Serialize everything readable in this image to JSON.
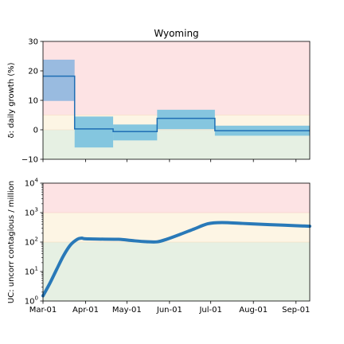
{
  "chart_data": [
    {
      "type": "step",
      "title": "Wyoming",
      "ylabel": "δ: daily growth (%)",
      "ylim": [
        -10,
        30
      ],
      "yticks": [
        -10,
        0,
        10,
        20,
        30
      ],
      "ytick_labels": [
        "−10",
        "0",
        "10",
        "20",
        "30"
      ],
      "xlim": [
        0,
        194
      ],
      "bands": [
        {
          "y0": -10,
          "y1": 0,
          "color": "#e6f0e3"
        },
        {
          "y0": 0,
          "y1": 5,
          "color": "#fdf5e4"
        },
        {
          "y0": 5,
          "y1": 30,
          "color": "#fde3e4"
        }
      ],
      "segments": [
        {
          "x0": 0,
          "x1": 23,
          "value": 18.2,
          "ci": [
            9.8,
            23.8
          ]
        },
        {
          "x0": 23,
          "x1": 51,
          "value": 0.3,
          "ci": [
            -6.0,
            4.5
          ]
        },
        {
          "x0": 51,
          "x1": 83,
          "value": -0.6,
          "ci": [
            -3.6,
            1.8
          ]
        },
        {
          "x0": 83,
          "x1": 125,
          "value": 3.9,
          "ci": [
            0.2,
            6.8
          ]
        },
        {
          "x0": 125,
          "x1": 194,
          "value": -0.3,
          "ci": [
            -2.0,
            1.4
          ]
        }
      ],
      "line_color": "#1f6fb4",
      "ci_color_high": "#94b8df",
      "ci_color": "#7ec3de"
    },
    {
      "type": "line",
      "ylabel": "UC: uncorr contagious / million",
      "yscale": "log",
      "ylim": [
        1,
        10000
      ],
      "yticks": [
        1,
        10,
        100,
        1000,
        10000
      ],
      "ytick_labels": [
        {
          "base": "10",
          "exp": "0"
        },
        {
          "base": "10",
          "exp": "1"
        },
        {
          "base": "10",
          "exp": "2"
        },
        {
          "base": "10",
          "exp": "3"
        },
        {
          "base": "10",
          "exp": "4"
        }
      ],
      "xlim": [
        0,
        194
      ],
      "xticks": [
        0,
        31,
        61,
        92,
        122,
        153,
        184
      ],
      "xtick_labels": [
        "Mar-01",
        "Apr-01",
        "May-01",
        "Jun-01",
        "Jul-01",
        "Aug-01",
        "Sep-01"
      ],
      "bands": [
        {
          "y0": 1,
          "y1": 100,
          "color": "#e6f0e3"
        },
        {
          "y0": 100,
          "y1": 1000,
          "color": "#fdf5e4"
        },
        {
          "y0": 1000,
          "y1": 10000,
          "color": "#fde3e4"
        }
      ],
      "x": [
        0,
        5,
        10,
        15,
        20,
        25,
        28,
        30,
        33,
        40,
        55,
        65,
        75,
        83,
        90,
        100,
        110,
        120,
        130,
        145,
        160,
        175,
        194
      ],
      "values": [
        1.5,
        4,
        12,
        35,
        80,
        125,
        136,
        130,
        128,
        126,
        124,
        112,
        103,
        102,
        125,
        185,
        280,
        420,
        460,
        430,
        400,
        375,
        345
      ],
      "line_color": "#2979b8"
    }
  ]
}
